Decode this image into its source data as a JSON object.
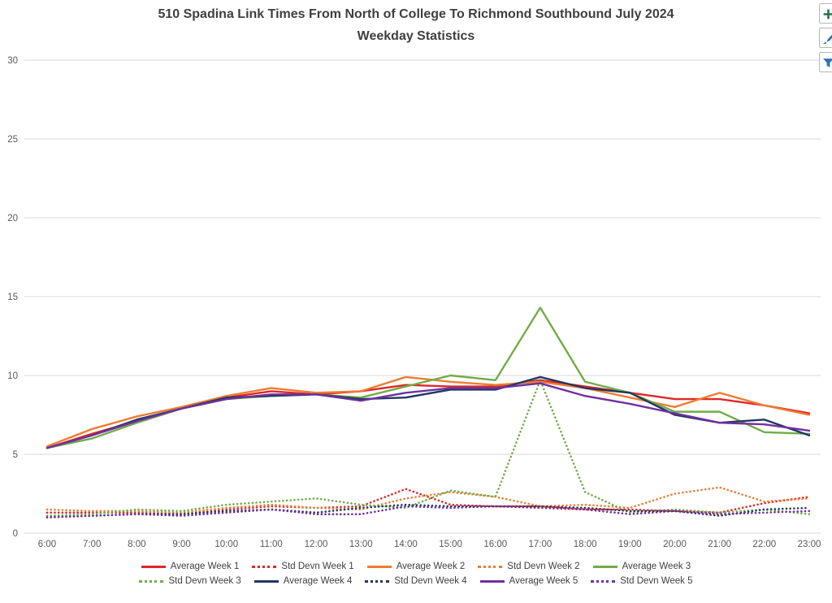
{
  "title": {
    "line1": "510 Spadina Link Times From North of College To Richmond Southbound July 2024",
    "line2": "Weekday Statistics"
  },
  "toolbar": {
    "buttons": [
      {
        "name": "chart-elements-button",
        "icon": "plus-icon"
      },
      {
        "name": "chart-styles-button",
        "icon": "paintbrush-icon"
      },
      {
        "name": "chart-filters-button",
        "icon": "funnel-icon"
      }
    ]
  },
  "chart_data": {
    "type": "line",
    "title": "510 Spadina Link Times From North of College To Richmond Southbound July 2024 Weekday Statistics",
    "xlabel": "",
    "ylabel": "",
    "ylim": [
      0,
      30
    ],
    "yticks": [
      0,
      5,
      10,
      15,
      20,
      25,
      30
    ],
    "grid": true,
    "legend_position": "bottom",
    "colors": {
      "gridline": "#d9d9d9",
      "axis_text": "#595959",
      "title_text": "#3f3f3f"
    },
    "x": [
      "6:00",
      "7:00",
      "8:00",
      "9:00",
      "10:00",
      "11:00",
      "12:00",
      "13:00",
      "14:00",
      "15:00",
      "16:00",
      "17:00",
      "18:00",
      "19:00",
      "20:00",
      "21:00",
      "22:00",
      "23:00"
    ],
    "series": [
      {
        "name": "Average Week 1",
        "color": "#e12726",
        "style": "solid",
        "values": [
          5.4,
          6.3,
          7.1,
          7.9,
          8.6,
          9.0,
          8.8,
          9.0,
          9.4,
          9.3,
          9.3,
          9.7,
          9.3,
          8.9,
          8.5,
          8.5,
          8.1,
          7.6
        ]
      },
      {
        "name": "Std Devn Week 1",
        "color": "#e12726",
        "style": "dotted",
        "values": [
          1.3,
          1.3,
          1.3,
          1.2,
          1.5,
          1.7,
          1.6,
          1.7,
          2.8,
          1.8,
          1.7,
          1.7,
          1.5,
          1.5,
          1.4,
          1.3,
          1.9,
          2.3
        ]
      },
      {
        "name": "Average Week 2",
        "color": "#ed7d31",
        "style": "solid",
        "values": [
          5.5,
          6.6,
          7.4,
          8.0,
          8.7,
          9.2,
          8.9,
          9.0,
          9.9,
          9.6,
          9.4,
          9.6,
          9.2,
          8.6,
          8.0,
          8.9,
          8.1,
          7.5
        ]
      },
      {
        "name": "Std Devn Week 2",
        "color": "#ed7d31",
        "style": "dotted",
        "values": [
          1.5,
          1.4,
          1.4,
          1.3,
          1.6,
          1.8,
          1.6,
          1.5,
          2.2,
          2.6,
          2.3,
          1.7,
          1.8,
          1.6,
          2.5,
          2.9,
          2.0,
          2.2
        ]
      },
      {
        "name": "Average Week 3",
        "color": "#70ad47",
        "style": "solid",
        "values": [
          5.4,
          6.0,
          7.0,
          7.9,
          8.5,
          8.7,
          8.8,
          8.6,
          9.3,
          10.0,
          9.7,
          14.3,
          9.6,
          8.9,
          7.7,
          7.7,
          6.4,
          6.3
        ]
      },
      {
        "name": "Std Devn Week 3",
        "color": "#70ad47",
        "style": "dotted",
        "values": [
          1.1,
          1.2,
          1.5,
          1.4,
          1.8,
          2.0,
          2.2,
          1.8,
          1.6,
          2.7,
          2.3,
          9.7,
          2.6,
          1.3,
          1.5,
          1.3,
          1.5,
          1.2
        ]
      },
      {
        "name": "Average Week 4",
        "color": "#1f3864",
        "style": "solid",
        "values": [
          5.4,
          6.2,
          7.2,
          7.9,
          8.6,
          8.7,
          8.8,
          8.5,
          8.6,
          9.1,
          9.1,
          9.9,
          9.2,
          8.9,
          7.5,
          7.0,
          7.2,
          6.2
        ]
      },
      {
        "name": "Std Devn Week 4",
        "color": "#1f3864",
        "style": "dotted",
        "values": [
          1.0,
          1.1,
          1.2,
          1.2,
          1.4,
          1.5,
          1.3,
          1.6,
          1.8,
          1.7,
          1.7,
          1.7,
          1.6,
          1.4,
          1.4,
          1.1,
          1.5,
          1.6
        ]
      },
      {
        "name": "Average Week 5",
        "color": "#7030a0",
        "style": "solid",
        "values": [
          5.4,
          6.2,
          7.1,
          7.9,
          8.5,
          8.8,
          8.8,
          8.4,
          8.9,
          9.2,
          9.2,
          9.5,
          8.7,
          8.2,
          7.6,
          7.0,
          6.9,
          6.5
        ]
      },
      {
        "name": "Std Devn Week 5",
        "color": "#7030a0",
        "style": "dotted",
        "values": [
          1.0,
          1.1,
          1.2,
          1.1,
          1.3,
          1.5,
          1.2,
          1.2,
          1.7,
          1.6,
          1.7,
          1.6,
          1.5,
          1.2,
          1.4,
          1.2,
          1.3,
          1.4
        ]
      }
    ],
    "legend_rows": [
      [
        0,
        1,
        2,
        3,
        4
      ],
      [
        5,
        6,
        7,
        8,
        9
      ]
    ]
  }
}
